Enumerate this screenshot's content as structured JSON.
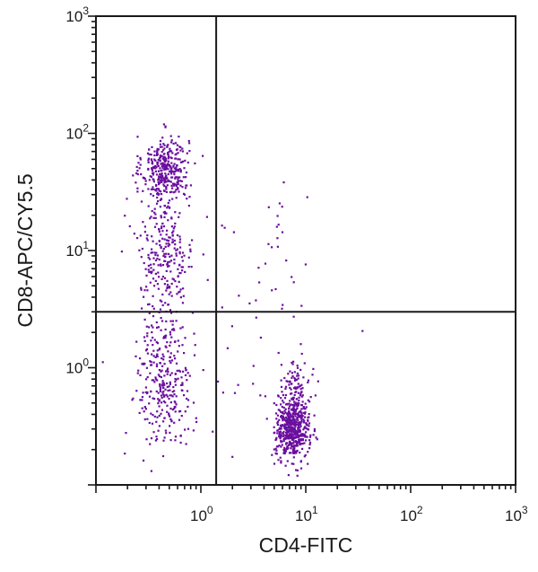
{
  "chart_data": {
    "type": "scatter",
    "xlabel": "CD4-FITC",
    "ylabel": "CD8-APC/CY5.5",
    "x_scale": "log",
    "y_scale": "log",
    "xlim": [
      0.1,
      1000
    ],
    "ylim": [
      0.1,
      1000
    ],
    "x_ticks": [
      {
        "base": "10",
        "exp": "0",
        "value": 1
      },
      {
        "base": "10",
        "exp": "1",
        "value": 10
      },
      {
        "base": "10",
        "exp": "2",
        "value": 100
      },
      {
        "base": "10",
        "exp": "3",
        "value": 1000
      }
    ],
    "y_ticks": [
      {
        "base": "10",
        "exp": "0",
        "value": 1
      },
      {
        "base": "10",
        "exp": "1",
        "value": 10
      },
      {
        "base": "10",
        "exp": "2",
        "value": 100
      },
      {
        "base": "10",
        "exp": "3",
        "value": 1000
      }
    ],
    "quadrant_gates": {
      "x": 1.4,
      "y": 3.0
    },
    "grid": false,
    "point_color": "#6a0f9e",
    "populations": [
      {
        "center": [
          0.46,
          50
        ],
        "spread": [
          0.11,
          0.14
        ],
        "count": 340
      },
      {
        "center": [
          0.45,
          10
        ],
        "spread": [
          0.14,
          0.28
        ],
        "count": 260
      },
      {
        "center": [
          0.45,
          0.8
        ],
        "spread": [
          0.13,
          0.28
        ],
        "count": 300
      },
      {
        "center": [
          7.5,
          0.3
        ],
        "spread": [
          0.08,
          0.13
        ],
        "count": 560
      },
      {
        "center": [
          8.0,
          0.7
        ],
        "spread": [
          0.07,
          0.1
        ],
        "count": 80
      },
      {
        "center": [
          5.0,
          8.0
        ],
        "spread": [
          0.18,
          0.45
        ],
        "count": 28
      },
      {
        "center": [
          1.5,
          1.0
        ],
        "spread": [
          0.55,
          0.75
        ],
        "count": 45
      }
    ]
  }
}
